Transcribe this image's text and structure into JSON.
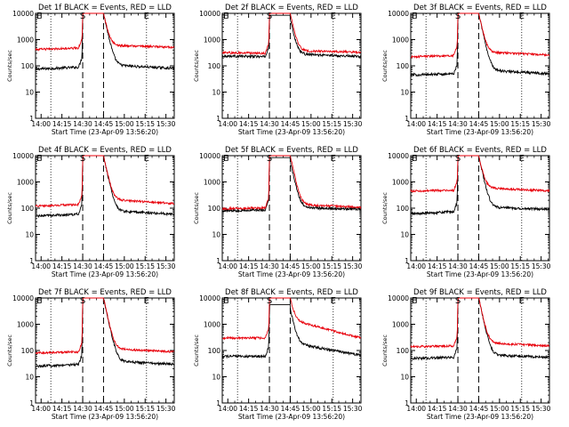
{
  "figure": {
    "line_colors": {
      "events": "#000000",
      "lld": "#e8000b"
    },
    "x_axis": {
      "tick_labels": [
        "14:00",
        "14:15",
        "14:30",
        "14:45",
        "15:00",
        "15:15",
        "15:30"
      ],
      "tick_minutes": [
        0,
        15,
        30,
        45,
        60,
        75,
        90
      ],
      "range_minutes": [
        -4,
        96
      ],
      "label": "Start Time (23-Apr-09 13:56:20)"
    },
    "y_axis": {
      "scale": "log",
      "range": [
        1,
        10000
      ],
      "tick_labels": [
        "1",
        "10",
        "100",
        "1000",
        "10000"
      ],
      "label": "Counts/sec"
    },
    "event_markers": {
      "labels": [
        "E",
        "S",
        "E"
      ],
      "minutes": [
        -4,
        30,
        76
      ],
      "s_dashed_lines_minutes": [
        30,
        45
      ],
      "e_dotted_lines_minutes": [
        7,
        76
      ]
    }
  },
  "chart_data": [
    {
      "type": "line",
      "title": "Det 1f BLACK = Events, RED = LLD",
      "series": [
        {
          "name": "Events",
          "start": 75,
          "end": 80,
          "pre": 90,
          "peak": 10000,
          "post": 110
        },
        {
          "name": "LLD",
          "start": 420,
          "end": 520,
          "pre": 480,
          "peak": 10000,
          "post": 600
        }
      ]
    },
    {
      "type": "line",
      "title": "Det 2f BLACK = Events, RED = LLD",
      "series": [
        {
          "name": "Events",
          "start": 240,
          "end": 230,
          "pre": 220,
          "peak": 6000,
          "post": 280
        },
        {
          "name": "LLD",
          "start": 320,
          "end": 330,
          "pre": 300,
          "peak": 10000,
          "post": 380
        }
      ]
    },
    {
      "type": "line",
      "title": "Det 3f BLACK = Events, RED = LLD",
      "series": [
        {
          "name": "Events",
          "start": 45,
          "end": 50,
          "pre": 50,
          "peak": 10000,
          "post": 70
        },
        {
          "name": "LLD",
          "start": 220,
          "end": 260,
          "pre": 250,
          "peak": 10000,
          "post": 340
        }
      ]
    },
    {
      "type": "line",
      "title": "Det 4f BLACK = Events, RED = LLD",
      "series": [
        {
          "name": "Events",
          "start": 50,
          "end": 60,
          "pre": 60,
          "peak": 10000,
          "post": 80
        },
        {
          "name": "LLD",
          "start": 120,
          "end": 150,
          "pre": 140,
          "peak": 10000,
          "post": 220
        }
      ]
    },
    {
      "type": "line",
      "title": "Det 5f BLACK = Events, RED = LLD",
      "series": [
        {
          "name": "Events",
          "start": 80,
          "end": 90,
          "pre": 85,
          "peak": 6000,
          "post": 110
        },
        {
          "name": "LLD",
          "start": 95,
          "end": 110,
          "pre": 105,
          "peak": 10000,
          "post": 140
        }
      ]
    },
    {
      "type": "line",
      "title": "Det 6f BLACK = Events, RED = LLD",
      "series": [
        {
          "name": "Events",
          "start": 60,
          "end": 90,
          "pre": 75,
          "peak": 10000,
          "post": 110
        },
        {
          "name": "LLD",
          "start": 450,
          "end": 460,
          "pre": 480,
          "peak": 10000,
          "post": 600
        }
      ]
    },
    {
      "type": "line",
      "title": "Det 7f BLACK = Events, RED = LLD",
      "series": [
        {
          "name": "Events",
          "start": 25,
          "end": 30,
          "pre": 30,
          "peak": 10000,
          "post": 40
        },
        {
          "name": "LLD",
          "start": 80,
          "end": 90,
          "pre": 90,
          "peak": 10000,
          "post": 120
        }
      ]
    },
    {
      "type": "line",
      "title": "Det 8f BLACK = Events, RED = LLD",
      "series": [
        {
          "name": "Events",
          "start": 60,
          "end": 65,
          "pre": 60,
          "peak": 4000,
          "post": 200
        },
        {
          "name": "LLD",
          "start": 300,
          "end": 300,
          "pre": 300,
          "peak": 10000,
          "post": 1500
        }
      ]
    },
    {
      "type": "line",
      "title": "Det 9f BLACK = Events, RED = LLD",
      "series": [
        {
          "name": "Events",
          "start": 50,
          "end": 55,
          "pre": 55,
          "peak": 10000,
          "post": 70
        },
        {
          "name": "LLD",
          "start": 140,
          "end": 150,
          "pre": 150,
          "peak": 10000,
          "post": 200
        }
      ]
    }
  ]
}
